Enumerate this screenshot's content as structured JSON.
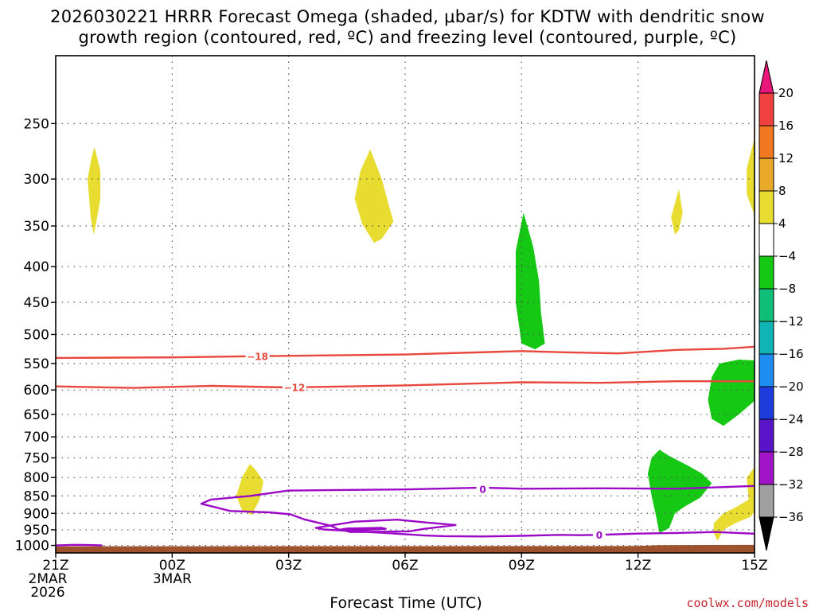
{
  "title": {
    "line1": "2026030221 HRRR Forecast Omega (shaded, μbar/s) for KDTW with dendritic snow",
    "line2": "growth region (contoured, red, ºC) and freezing level (contoured, purple, ºC)"
  },
  "credit": "coolwx.com/models",
  "chart_data": {
    "type": "heatmap",
    "xlabel": "Forecast Time (UTC)",
    "ylabel": "",
    "y_scale": "log-pressure (inverted)",
    "y_unit": "hPa",
    "grid": true,
    "x_ticks": [
      {
        "hour": 0,
        "lines": [
          "21Z",
          "2MAR",
          "2026"
        ]
      },
      {
        "hour": 3,
        "lines": [
          "00Z",
          "3MAR"
        ]
      },
      {
        "hour": 6,
        "lines": [
          "03Z"
        ]
      },
      {
        "hour": 9,
        "lines": [
          "06Z"
        ]
      },
      {
        "hour": 12,
        "lines": [
          "09Z"
        ]
      },
      {
        "hour": 15,
        "lines": [
          "12Z"
        ]
      },
      {
        "hour": 18,
        "lines": [
          "15Z"
        ]
      }
    ],
    "x_range_hours": [
      0,
      18
    ],
    "y_ticks": [
      250,
      300,
      350,
      400,
      450,
      500,
      550,
      600,
      650,
      700,
      750,
      800,
      850,
      900,
      950,
      1000
    ],
    "y_range": [
      200,
      1025
    ],
    "colorbar": {
      "labels": [
        "20",
        "16",
        "12",
        "8",
        "4",
        "−4",
        "−8",
        "−12",
        "−16",
        "−20",
        "−24",
        "−28",
        "−32",
        "−36"
      ],
      "colors": [
        "#e8157a",
        "#f04040",
        "#f07820",
        "#e8a828",
        "#e8dc30",
        "#ffffff",
        "#14c814",
        "#10be78",
        "#10b4b4",
        "#1e8cf0",
        "#1e3cdc",
        "#5a14c8",
        "#a014c8",
        "#a0a0a0",
        "#000000"
      ]
    },
    "shaded_regions": [
      {
        "category": "4 to 8",
        "color": "#e8dc30",
        "points": [
          [
            1,
            270
          ],
          [
            1.15,
            292
          ],
          [
            1.15,
            320
          ],
          [
            1.05,
            345
          ],
          [
            0.98,
            360
          ],
          [
            0.9,
            340
          ],
          [
            0.82,
            300
          ],
          [
            0.92,
            280
          ]
        ]
      },
      {
        "category": "4 to 8",
        "color": "#e8dc30",
        "points": [
          [
            8.1,
            272
          ],
          [
            8.4,
            300
          ],
          [
            8.6,
            330
          ],
          [
            8.7,
            345
          ],
          [
            8.4,
            365
          ],
          [
            8.2,
            370
          ],
          [
            7.9,
            348
          ],
          [
            7.7,
            320
          ],
          [
            7.85,
            292
          ]
        ]
      },
      {
        "category": "4 to 8",
        "color": "#e8dc30",
        "points": [
          [
            16.05,
            310
          ],
          [
            16.15,
            335
          ],
          [
            16.05,
            355
          ],
          [
            15.95,
            360
          ],
          [
            15.85,
            340
          ],
          [
            15.95,
            325
          ]
        ]
      },
      {
        "category": "4 to 8",
        "color": "#e8dc30",
        "points": [
          [
            18.1,
            250
          ],
          [
            18.1,
            350
          ],
          [
            17.8,
            315
          ],
          [
            17.8,
            290
          ],
          [
            18,
            262
          ]
        ]
      },
      {
        "category": "4 to 8",
        "color": "#e8dc30",
        "points": [
          [
            5,
            765
          ],
          [
            5.15,
            780
          ],
          [
            5.35,
            810
          ],
          [
            5.25,
            860
          ],
          [
            5.05,
            905
          ],
          [
            4.8,
            890
          ],
          [
            4.65,
            850
          ],
          [
            4.8,
            800
          ]
        ]
      },
      {
        "category": "4 to 8",
        "color": "#e8dc30",
        "points": [
          [
            18.1,
            760
          ],
          [
            18.1,
            880
          ],
          [
            17.9,
            910
          ],
          [
            17.5,
            930
          ],
          [
            17.2,
            950
          ],
          [
            17.05,
            985
          ],
          [
            16.95,
            960
          ],
          [
            16.95,
            930
          ],
          [
            17.2,
            900
          ],
          [
            17.55,
            880
          ],
          [
            17.85,
            860
          ],
          [
            17.8,
            800
          ]
        ]
      },
      {
        "category": "-4 to -8",
        "color": "#14c814",
        "points": [
          [
            12.05,
            335
          ],
          [
            12.3,
            375
          ],
          [
            12.45,
            420
          ],
          [
            12.5,
            465
          ],
          [
            12.6,
            515
          ],
          [
            12.35,
            525
          ],
          [
            12,
            515
          ],
          [
            11.85,
            450
          ],
          [
            11.85,
            380
          ]
        ]
      },
      {
        "category": "-4 to -8",
        "color": "#14c814",
        "points": [
          [
            18.1,
            545
          ],
          [
            18.1,
            615
          ],
          [
            17.6,
            650
          ],
          [
            17.2,
            675
          ],
          [
            16.9,
            660
          ],
          [
            16.8,
            620
          ],
          [
            16.9,
            575
          ],
          [
            17.1,
            550
          ],
          [
            17.6,
            543
          ]
        ]
      },
      {
        "category": "-4 to -8",
        "color": "#14c814",
        "points": [
          [
            15.55,
            730
          ],
          [
            15.8,
            745
          ],
          [
            16.3,
            770
          ],
          [
            16.65,
            790
          ],
          [
            16.9,
            815
          ],
          [
            16.6,
            855
          ],
          [
            16.2,
            880
          ],
          [
            15.95,
            900
          ],
          [
            15.8,
            945
          ],
          [
            15.55,
            960
          ],
          [
            15.45,
            900
          ],
          [
            15.35,
            850
          ],
          [
            15.25,
            790
          ],
          [
            15.35,
            750
          ]
        ]
      }
    ],
    "contours": [
      {
        "name": "dendritic-lower",
        "color": "#e8473c",
        "value_label": "−18",
        "label_at": [
          5.2,
          537
        ],
        "points": [
          [
            0,
            540
          ],
          [
            3,
            539
          ],
          [
            5,
            537
          ],
          [
            9,
            534
          ],
          [
            12,
            528
          ],
          [
            13,
            530
          ],
          [
            14.5,
            532
          ],
          [
            16,
            526
          ],
          [
            17.2,
            524
          ],
          [
            18.1,
            520
          ]
        ]
      },
      {
        "name": "dendritic-upper",
        "color": "#e8473c",
        "value_label": "−12",
        "label_at": [
          6.15,
          595
        ],
        "points": [
          [
            0,
            593
          ],
          [
            2,
            596
          ],
          [
            4,
            592
          ],
          [
            6,
            595
          ],
          [
            9,
            591
          ],
          [
            12,
            585
          ],
          [
            14,
            586
          ],
          [
            16,
            583
          ],
          [
            18.1,
            583
          ]
        ]
      },
      {
        "name": "freezing-main",
        "color": "#9c0ac8",
        "value_label": "0",
        "label_at": [
          11,
          832
        ],
        "points": [
          [
            18.1,
            822
          ],
          [
            16,
            830
          ],
          [
            14,
            829
          ],
          [
            12,
            830
          ],
          [
            11,
            827
          ],
          [
            9,
            832
          ],
          [
            7,
            834
          ],
          [
            6,
            835
          ],
          [
            5,
            850
          ],
          [
            4,
            860
          ],
          [
            3.75,
            872
          ],
          [
            4.5,
            893
          ],
          [
            5.5,
            897
          ],
          [
            6.05,
            903
          ],
          [
            6.4,
            918
          ],
          [
            7.1,
            938
          ],
          [
            7.3,
            950
          ],
          [
            7.6,
            957
          ],
          [
            9.1,
            955
          ],
          [
            9.5,
            947
          ],
          [
            10.3,
            935
          ],
          [
            9.5,
            927
          ],
          [
            8.8,
            919
          ],
          [
            7.7,
            925
          ],
          [
            6.7,
            944
          ],
          [
            6.9,
            949
          ],
          [
            8.5,
            960
          ],
          [
            9.5,
            968
          ],
          [
            10,
            970
          ],
          [
            11,
            971
          ],
          [
            12,
            969
          ],
          [
            13,
            966
          ],
          [
            13.5,
            967
          ],
          [
            14,
            966
          ],
          [
            15,
            962
          ],
          [
            16,
            960
          ],
          [
            17,
            957
          ],
          [
            18.1,
            963
          ]
        ]
      },
      {
        "name": "freezing-loop",
        "color": "#9c0ac8",
        "value_label": "0",
        "label_at": [
          14,
          966
        ],
        "points": [
          [
            7.3,
            950
          ],
          [
            7.5,
            946
          ],
          [
            8.4,
            944
          ],
          [
            8.5,
            947
          ],
          [
            8,
            950
          ],
          [
            7.5,
            952
          ],
          [
            7.3,
            950
          ]
        ]
      },
      {
        "name": "freezing-surface",
        "color": "#9c0ac8",
        "value_label": "",
        "points": [
          [
            0,
            1000
          ],
          [
            0.5,
            998
          ],
          [
            1,
            999
          ],
          [
            1.2,
            1000
          ]
        ]
      }
    ],
    "terrain": {
      "color": "#a0522d",
      "surface_hpa": [
        [
          0,
          1003
        ],
        [
          15,
          1002
        ],
        [
          15.5,
          999
        ],
        [
          18.1,
          998
        ]
      ]
    }
  }
}
